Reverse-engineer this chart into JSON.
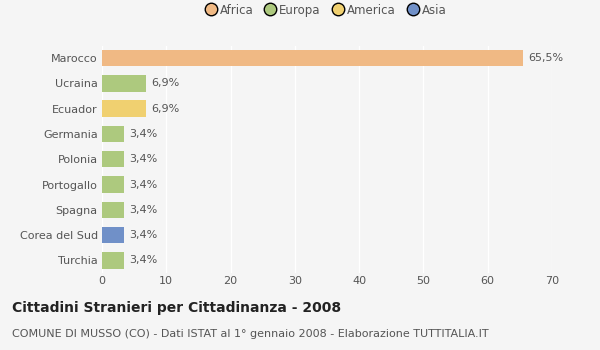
{
  "categories": [
    "Marocco",
    "Ucraina",
    "Ecuador",
    "Germania",
    "Polonia",
    "Portogallo",
    "Spagna",
    "Corea del Sud",
    "Turchia"
  ],
  "values": [
    65.5,
    6.9,
    6.9,
    3.4,
    3.4,
    3.4,
    3.4,
    3.4,
    3.4
  ],
  "labels": [
    "65,5%",
    "6,9%",
    "6,9%",
    "3,4%",
    "3,4%",
    "3,4%",
    "3,4%",
    "3,4%",
    "3,4%"
  ],
  "colors": [
    "#f0b984",
    "#adc97e",
    "#f0d070",
    "#adc97e",
    "#adc97e",
    "#adc97e",
    "#adc97e",
    "#7090c8",
    "#adc97e"
  ],
  "legend_items": [
    {
      "label": "Africa",
      "color": "#f0b984"
    },
    {
      "label": "Europa",
      "color": "#adc97e"
    },
    {
      "label": "America",
      "color": "#f0d070"
    },
    {
      "label": "Asia",
      "color": "#7090c8"
    }
  ],
  "xlim": [
    0,
    70
  ],
  "xticks": [
    0,
    10,
    20,
    30,
    40,
    50,
    60,
    70
  ],
  "title": "Cittadini Stranieri per Cittadinanza - 2008",
  "subtitle": "COMUNE DI MUSSO (CO) - Dati ISTAT al 1° gennaio 2008 - Elaborazione TUTTITALIA.IT",
  "background_color": "#f5f5f5",
  "bar_height": 0.65,
  "title_fontsize": 10,
  "subtitle_fontsize": 8,
  "label_fontsize": 8,
  "tick_fontsize": 8,
  "legend_fontsize": 8.5
}
